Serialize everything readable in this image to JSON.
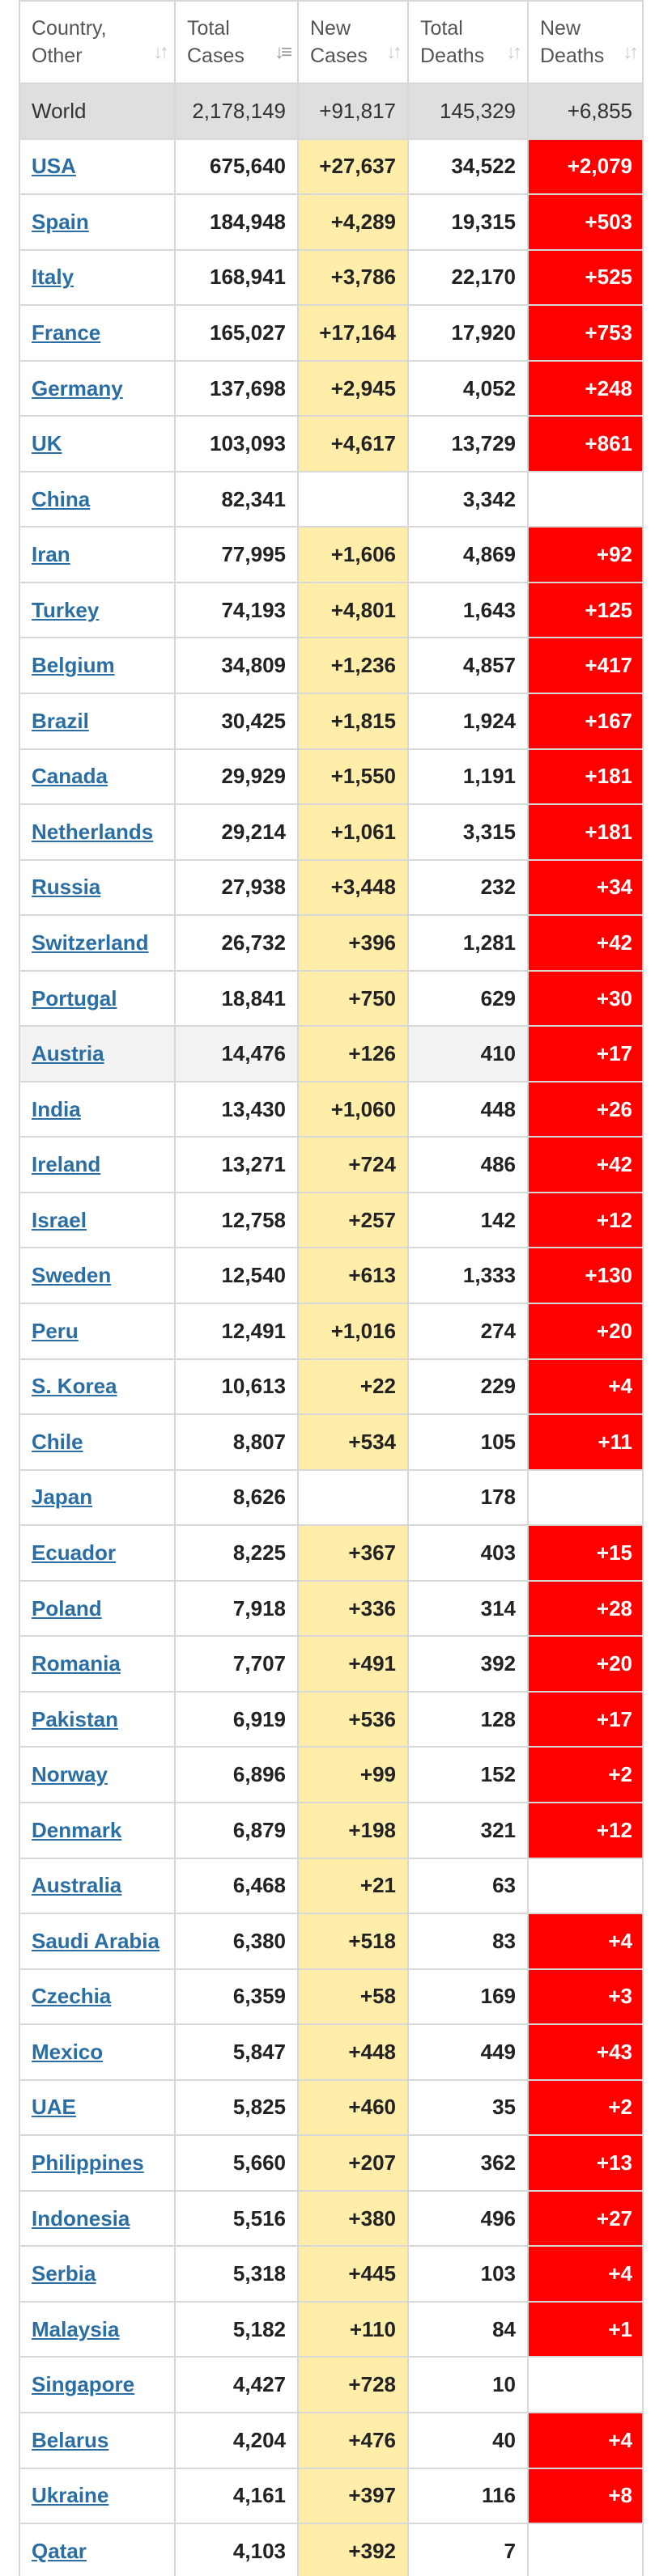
{
  "headers": {
    "country": [
      "Country,",
      "Other"
    ],
    "total_cases": [
      "Total",
      "Cases"
    ],
    "new_cases": [
      "New",
      "Cases"
    ],
    "total_deaths": [
      "Total",
      "Deaths"
    ],
    "new_deaths": [
      "New",
      "Deaths"
    ]
  },
  "world": {
    "name": "World",
    "total_cases": "2,178,149",
    "new_cases": "+91,817",
    "total_deaths": "145,329",
    "new_deaths": "+6,855"
  },
  "rows": [
    {
      "name": "USA",
      "total_cases": "675,640",
      "new_cases": "+27,637",
      "total_deaths": "34,522",
      "new_deaths": "+2,079"
    },
    {
      "name": "Spain",
      "total_cases": "184,948",
      "new_cases": "+4,289",
      "total_deaths": "19,315",
      "new_deaths": "+503"
    },
    {
      "name": "Italy",
      "total_cases": "168,941",
      "new_cases": "+3,786",
      "total_deaths": "22,170",
      "new_deaths": "+525"
    },
    {
      "name": "France",
      "total_cases": "165,027",
      "new_cases": "+17,164",
      "total_deaths": "17,920",
      "new_deaths": "+753"
    },
    {
      "name": "Germany",
      "total_cases": "137,698",
      "new_cases": "+2,945",
      "total_deaths": "4,052",
      "new_deaths": "+248"
    },
    {
      "name": "UK",
      "total_cases": "103,093",
      "new_cases": "+4,617",
      "total_deaths": "13,729",
      "new_deaths": "+861"
    },
    {
      "name": "China",
      "total_cases": "82,341",
      "new_cases": "",
      "total_deaths": "3,342",
      "new_deaths": ""
    },
    {
      "name": "Iran",
      "total_cases": "77,995",
      "new_cases": "+1,606",
      "total_deaths": "4,869",
      "new_deaths": "+92"
    },
    {
      "name": "Turkey",
      "total_cases": "74,193",
      "new_cases": "+4,801",
      "total_deaths": "1,643",
      "new_deaths": "+125"
    },
    {
      "name": "Belgium",
      "total_cases": "34,809",
      "new_cases": "+1,236",
      "total_deaths": "4,857",
      "new_deaths": "+417"
    },
    {
      "name": "Brazil",
      "total_cases": "30,425",
      "new_cases": "+1,815",
      "total_deaths": "1,924",
      "new_deaths": "+167"
    },
    {
      "name": "Canada",
      "total_cases": "29,929",
      "new_cases": "+1,550",
      "total_deaths": "1,191",
      "new_deaths": "+181"
    },
    {
      "name": "Netherlands",
      "total_cases": "29,214",
      "new_cases": "+1,061",
      "total_deaths": "3,315",
      "new_deaths": "+181"
    },
    {
      "name": "Russia",
      "total_cases": "27,938",
      "new_cases": "+3,448",
      "total_deaths": "232",
      "new_deaths": "+34"
    },
    {
      "name": "Switzerland",
      "total_cases": "26,732",
      "new_cases": "+396",
      "total_deaths": "1,281",
      "new_deaths": "+42"
    },
    {
      "name": "Portugal",
      "total_cases": "18,841",
      "new_cases": "+750",
      "total_deaths": "629",
      "new_deaths": "+30"
    },
    {
      "name": "Austria",
      "total_cases": "14,476",
      "new_cases": "+126",
      "total_deaths": "410",
      "new_deaths": "+17",
      "highlight": true
    },
    {
      "name": "India",
      "total_cases": "13,430",
      "new_cases": "+1,060",
      "total_deaths": "448",
      "new_deaths": "+26"
    },
    {
      "name": "Ireland",
      "total_cases": "13,271",
      "new_cases": "+724",
      "total_deaths": "486",
      "new_deaths": "+42"
    },
    {
      "name": "Israel",
      "total_cases": "12,758",
      "new_cases": "+257",
      "total_deaths": "142",
      "new_deaths": "+12"
    },
    {
      "name": "Sweden",
      "total_cases": "12,540",
      "new_cases": "+613",
      "total_deaths": "1,333",
      "new_deaths": "+130"
    },
    {
      "name": "Peru",
      "total_cases": "12,491",
      "new_cases": "+1,016",
      "total_deaths": "274",
      "new_deaths": "+20"
    },
    {
      "name": "S. Korea",
      "total_cases": "10,613",
      "new_cases": "+22",
      "total_deaths": "229",
      "new_deaths": "+4"
    },
    {
      "name": "Chile",
      "total_cases": "8,807",
      "new_cases": "+534",
      "total_deaths": "105",
      "new_deaths": "+11"
    },
    {
      "name": "Japan",
      "total_cases": "8,626",
      "new_cases": "",
      "total_deaths": "178",
      "new_deaths": ""
    },
    {
      "name": "Ecuador",
      "total_cases": "8,225",
      "new_cases": "+367",
      "total_deaths": "403",
      "new_deaths": "+15"
    },
    {
      "name": "Poland",
      "total_cases": "7,918",
      "new_cases": "+336",
      "total_deaths": "314",
      "new_deaths": "+28"
    },
    {
      "name": "Romania",
      "total_cases": "7,707",
      "new_cases": "+491",
      "total_deaths": "392",
      "new_deaths": "+20"
    },
    {
      "name": "Pakistan",
      "total_cases": "6,919",
      "new_cases": "+536",
      "total_deaths": "128",
      "new_deaths": "+17"
    },
    {
      "name": "Norway",
      "total_cases": "6,896",
      "new_cases": "+99",
      "total_deaths": "152",
      "new_deaths": "+2"
    },
    {
      "name": "Denmark",
      "total_cases": "6,879",
      "new_cases": "+198",
      "total_deaths": "321",
      "new_deaths": "+12"
    },
    {
      "name": "Australia",
      "total_cases": "6,468",
      "new_cases": "+21",
      "total_deaths": "63",
      "new_deaths": ""
    },
    {
      "name": "Saudi Arabia",
      "total_cases": "6,380",
      "new_cases": "+518",
      "total_deaths": "83",
      "new_deaths": "+4"
    },
    {
      "name": "Czechia",
      "total_cases": "6,359",
      "new_cases": "+58",
      "total_deaths": "169",
      "new_deaths": "+3"
    },
    {
      "name": "Mexico",
      "total_cases": "5,847",
      "new_cases": "+448",
      "total_deaths": "449",
      "new_deaths": "+43"
    },
    {
      "name": "UAE",
      "total_cases": "5,825",
      "new_cases": "+460",
      "total_deaths": "35",
      "new_deaths": "+2"
    },
    {
      "name": "Philippines",
      "total_cases": "5,660",
      "new_cases": "+207",
      "total_deaths": "362",
      "new_deaths": "+13"
    },
    {
      "name": "Indonesia",
      "total_cases": "5,516",
      "new_cases": "+380",
      "total_deaths": "496",
      "new_deaths": "+27"
    },
    {
      "name": "Serbia",
      "total_cases": "5,318",
      "new_cases": "+445",
      "total_deaths": "103",
      "new_deaths": "+4"
    },
    {
      "name": "Malaysia",
      "total_cases": "5,182",
      "new_cases": "+110",
      "total_deaths": "84",
      "new_deaths": "+1"
    },
    {
      "name": "Singapore",
      "total_cases": "4,427",
      "new_cases": "+728",
      "total_deaths": "10",
      "new_deaths": ""
    },
    {
      "name": "Belarus",
      "total_cases": "4,204",
      "new_cases": "+476",
      "total_deaths": "40",
      "new_deaths": "+4"
    },
    {
      "name": "Ukraine",
      "total_cases": "4,161",
      "new_cases": "+397",
      "total_deaths": "116",
      "new_deaths": "+8"
    },
    {
      "name": "Qatar",
      "total_cases": "4,103",
      "new_cases": "+392",
      "total_deaths": "7",
      "new_deaths": ""
    }
  ],
  "colors": {
    "new_cases_bg": "#feeeaa",
    "new_deaths_bg": "#ff0000",
    "link": "#2b6ea3",
    "world_bg": "#dfdfdf"
  },
  "icons": {
    "sort": "sort-arrows-icon"
  }
}
